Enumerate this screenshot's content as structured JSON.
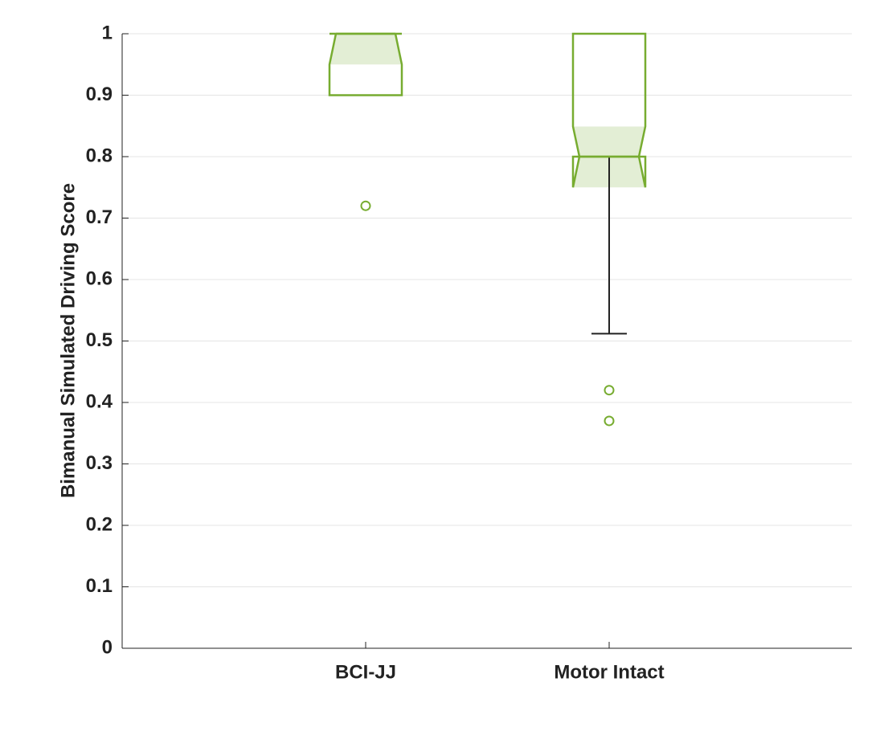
{
  "chart_data": {
    "type": "boxplot",
    "y_label": "Bimanual Simulated Driving Score",
    "categories": [
      "BCI-JJ",
      "Motor Intact"
    ],
    "boxes": [
      {
        "q1": 0.9,
        "median": 1,
        "q3": 1,
        "whisker_low": 0.9,
        "whisker_high": 1,
        "notch": [
          0.95,
          1
        ],
        "outliers": [
          0.72
        ]
      },
      {
        "q1": 0.8,
        "median": 0.8,
        "q3": 1,
        "whisker_low": 0.512,
        "whisker_high": 1,
        "notch": [
          0.75,
          0.849
        ],
        "outliers": [
          0.42,
          0.37
        ]
      }
    ],
    "color": "#77ac30",
    "notch_fill": "#e3eed5",
    "whisker_color": "#222222",
    "ylim": [
      0,
      1
    ],
    "yticks": [
      0,
      0.1,
      0.2,
      0.3,
      0.4,
      0.5,
      0.6,
      0.7,
      0.8,
      0.9,
      1
    ],
    "grid": true
  }
}
